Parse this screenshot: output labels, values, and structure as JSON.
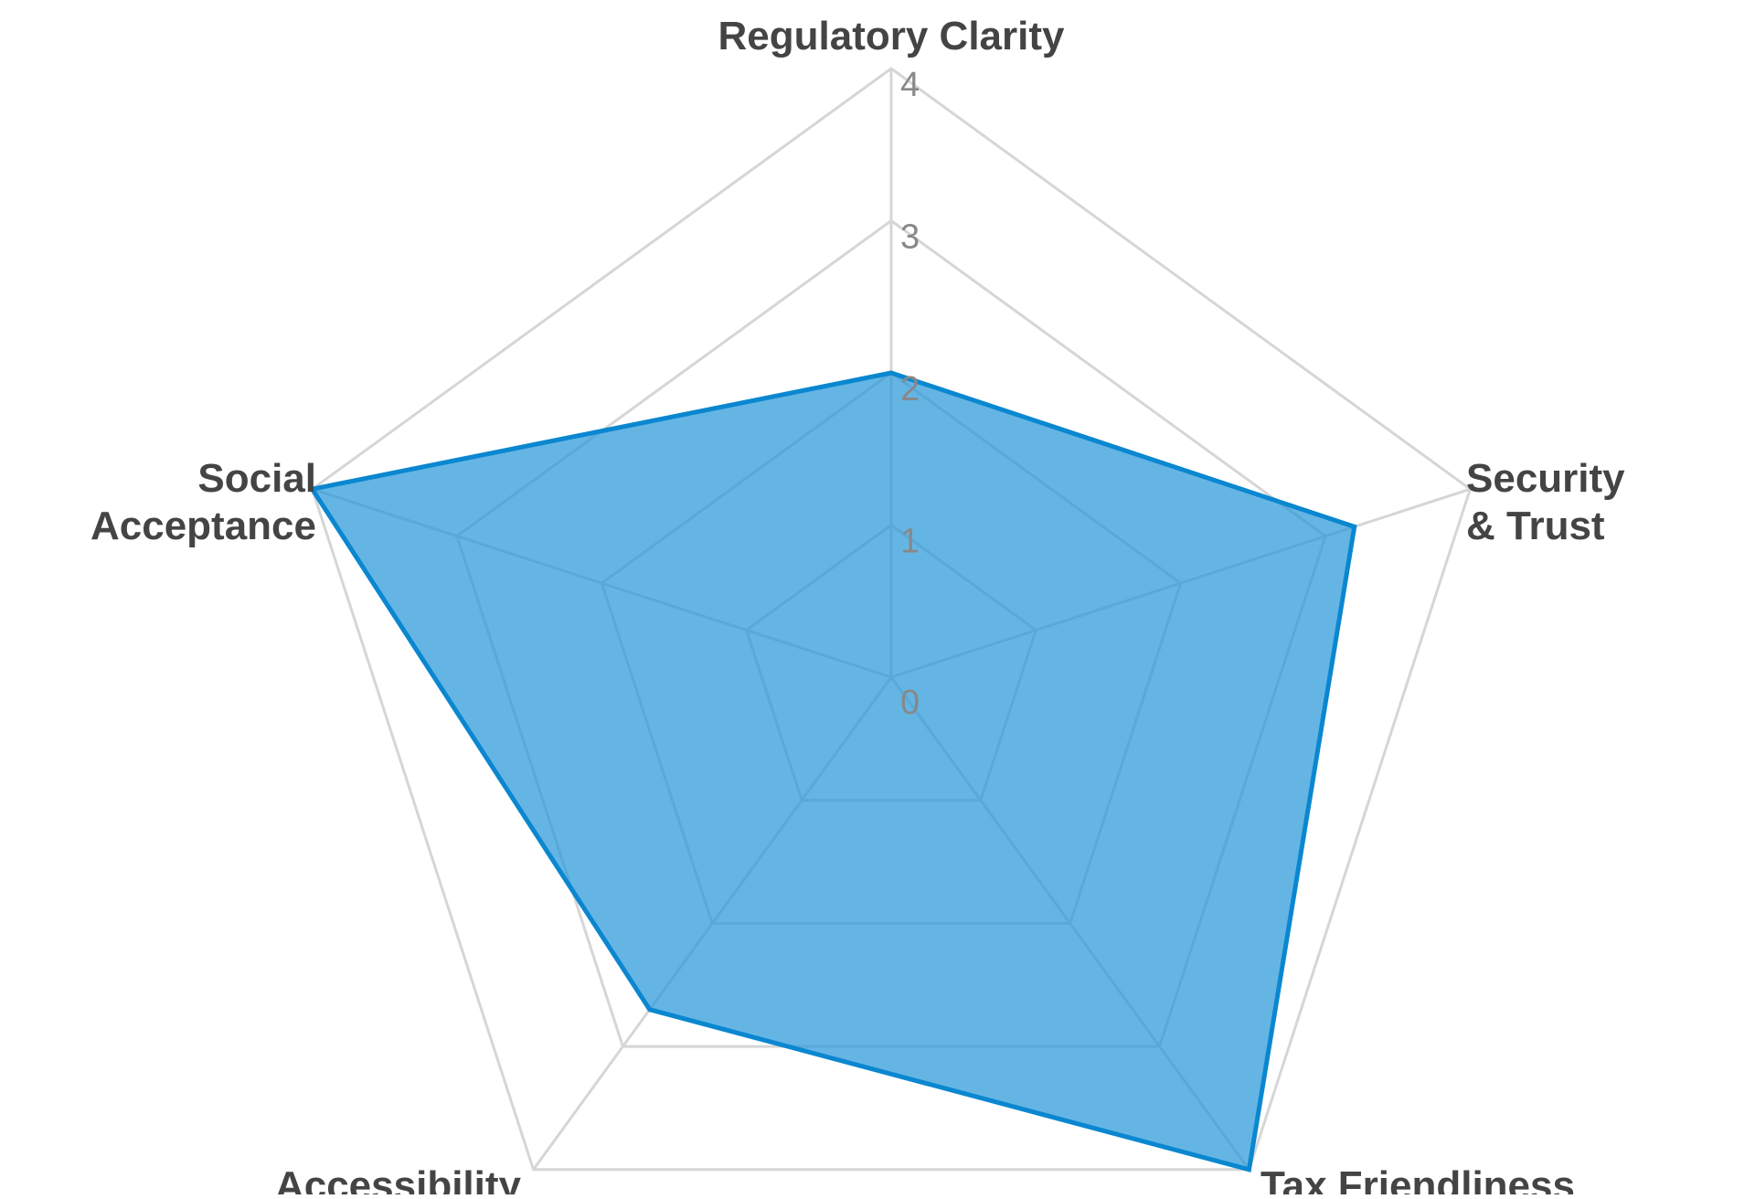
{
  "chart_data": {
    "type": "radar",
    "title": "",
    "axes": [
      [
        "Regulatory Clarity"
      ],
      [
        "Security",
        "& Trust"
      ],
      [
        "Tax Friendliness"
      ],
      [
        "Accessibility"
      ],
      [
        "Social",
        "Acceptance"
      ]
    ],
    "series": [
      {
        "values": [
          2.0,
          3.2,
          4.0,
          2.7,
          4.0
        ]
      }
    ],
    "range": [
      0,
      4
    ],
    "ticks": [
      "0",
      "1",
      "2",
      "3",
      "4"
    ],
    "grid": true,
    "legend": "none",
    "colors": {
      "line": "#0a87d0",
      "fill": "#2396d8",
      "grid": "#d6d6d6",
      "axis_label": "#444444",
      "tick_label": "#888888"
    }
  }
}
